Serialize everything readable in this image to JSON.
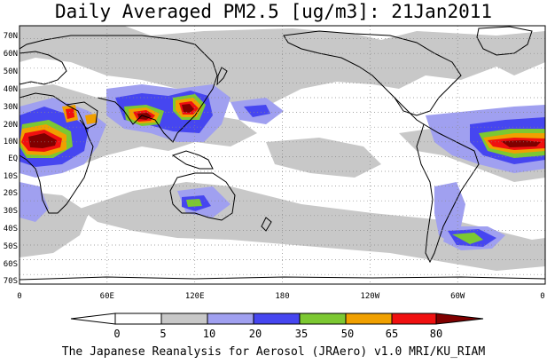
{
  "map": {
    "title": "Daily Averaged PM2.5 [ug/m3]: 21Jan2011",
    "credit": "The Japanese Reanalysis for Aerosol (JRAero) v1.0 MRI/KU_RIAM",
    "projection": "equirectangular, centered on 180",
    "lat_labels": [
      "70N",
      "60N",
      "50N",
      "40N",
      "30N",
      "20N",
      "10N",
      "EQ",
      "10S",
      "20S",
      "30S",
      "40S",
      "50S",
      "60S",
      "70S"
    ],
    "lon_labels": [
      "0",
      "60E",
      "120E",
      "180",
      "120W",
      "60W",
      "0"
    ],
    "colorbar": {
      "levels": [
        "0",
        "5",
        "10",
        "20",
        "35",
        "50",
        "65",
        "80"
      ],
      "colors": [
        "#ffffff",
        "#c8c8c8",
        "#a0a0f0",
        "#4646f0",
        "#7cc832",
        "#f0a000",
        "#f01010",
        "#800000"
      ]
    }
  }
}
